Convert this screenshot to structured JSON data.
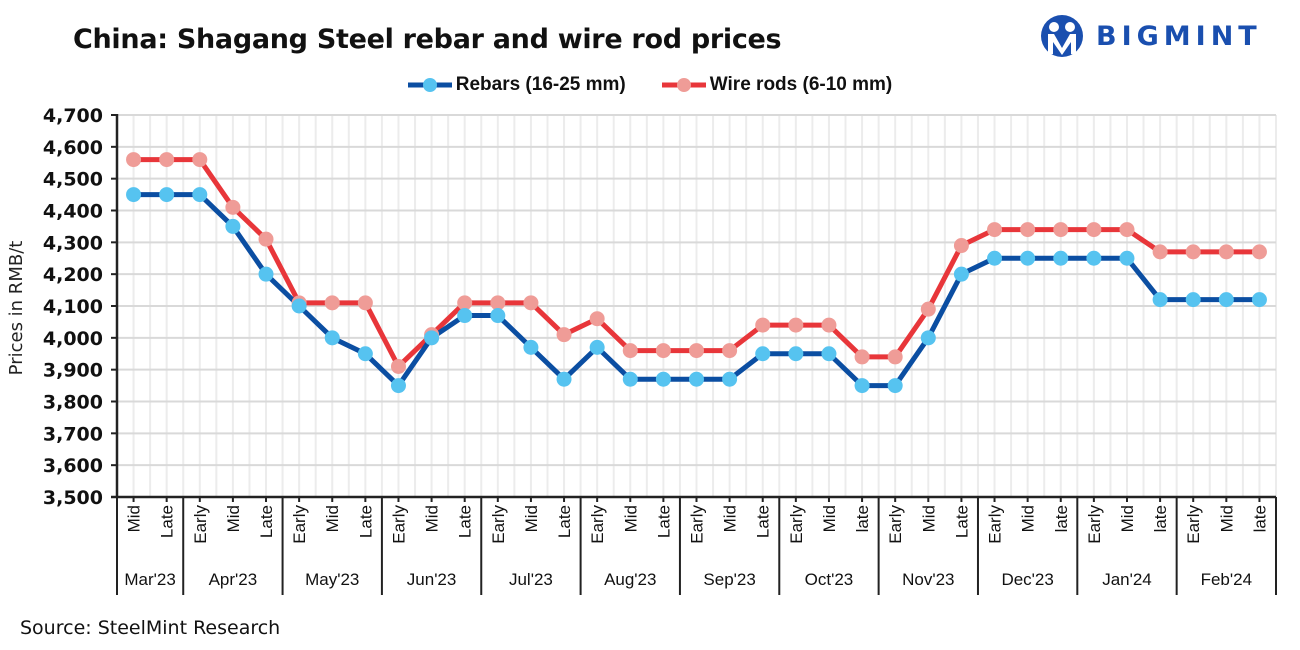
{
  "header": {
    "title": "China: Shagang Steel rebar and wire rod prices",
    "logo_text": "BIGMINT",
    "logo_color": "#1a4faf"
  },
  "footer": {
    "source": "Source: SteelMint Research"
  },
  "chart_data": {
    "type": "line",
    "title": "China: Shagang Steel rebar and wire rod prices",
    "xlabel": "",
    "ylabel": "Prices in RMB/t",
    "ylim": [
      3500,
      4700
    ],
    "yticks": [
      3500,
      3600,
      3700,
      3800,
      3900,
      4000,
      4100,
      4200,
      4300,
      4400,
      4500,
      4600,
      4700
    ],
    "ytick_labels": [
      "3,500",
      "3,600",
      "3,700",
      "3,800",
      "3,900",
      "4,000",
      "4,100",
      "4,200",
      "4,300",
      "4,400",
      "4,500",
      "4,600",
      "4,700"
    ],
    "grid": true,
    "legend_position": "top-center",
    "categories": [
      "Mid",
      "Late",
      "Early",
      "Mid",
      "Late",
      "Early",
      "Mid",
      "Late",
      "Early",
      "Mid",
      "Late",
      "Early",
      "Mid",
      "Late",
      "Early",
      "Mid",
      "Late",
      "Early",
      "Mid",
      "Late",
      "Early",
      "Mid",
      "late",
      "Early",
      "Mid",
      "Late",
      "Early",
      "Mid",
      "late",
      "Early",
      "Mid",
      "late",
      "Early",
      "Mid",
      "late"
    ],
    "groups": [
      {
        "label": "Mar'23",
        "count": 2
      },
      {
        "label": "Apr'23",
        "count": 3
      },
      {
        "label": "May'23",
        "count": 3
      },
      {
        "label": "Jun'23",
        "count": 3
      },
      {
        "label": "Jul'23",
        "count": 3
      },
      {
        "label": "Aug'23",
        "count": 3
      },
      {
        "label": "Sep'23",
        "count": 3
      },
      {
        "label": "Oct'23",
        "count": 3
      },
      {
        "label": "Nov'23",
        "count": 3
      },
      {
        "label": "Dec'23",
        "count": 3
      },
      {
        "label": "Jan'24",
        "count": 3
      },
      {
        "label": "Feb'24",
        "count": 3
      }
    ],
    "series": [
      {
        "name": "Rebars (16-25 mm)",
        "line_color": "#0b4ea2",
        "marker_color": "#56c3f0",
        "values": [
          4450,
          4450,
          4450,
          4350,
          4200,
          4100,
          4000,
          3950,
          3850,
          4000,
          4070,
          4070,
          3970,
          3870,
          3970,
          3870,
          3870,
          3870,
          3870,
          3950,
          3950,
          3950,
          3850,
          3850,
          4000,
          4200,
          4250,
          4250,
          4250,
          4250,
          4250,
          4120,
          4120,
          4120,
          4120
        ]
      },
      {
        "name": "Wire rods (6-10 mm)",
        "line_color": "#e8363a",
        "marker_color": "#ef9c97",
        "values": [
          4560,
          4560,
          4560,
          4410,
          4310,
          4110,
          4110,
          4110,
          3910,
          4010,
          4110,
          4110,
          4110,
          4010,
          4060,
          3960,
          3960,
          3960,
          3960,
          4040,
          4040,
          4040,
          3940,
          3940,
          4090,
          4290,
          4340,
          4340,
          4340,
          4340,
          4340,
          4270,
          4270,
          4270,
          4270
        ]
      }
    ]
  }
}
